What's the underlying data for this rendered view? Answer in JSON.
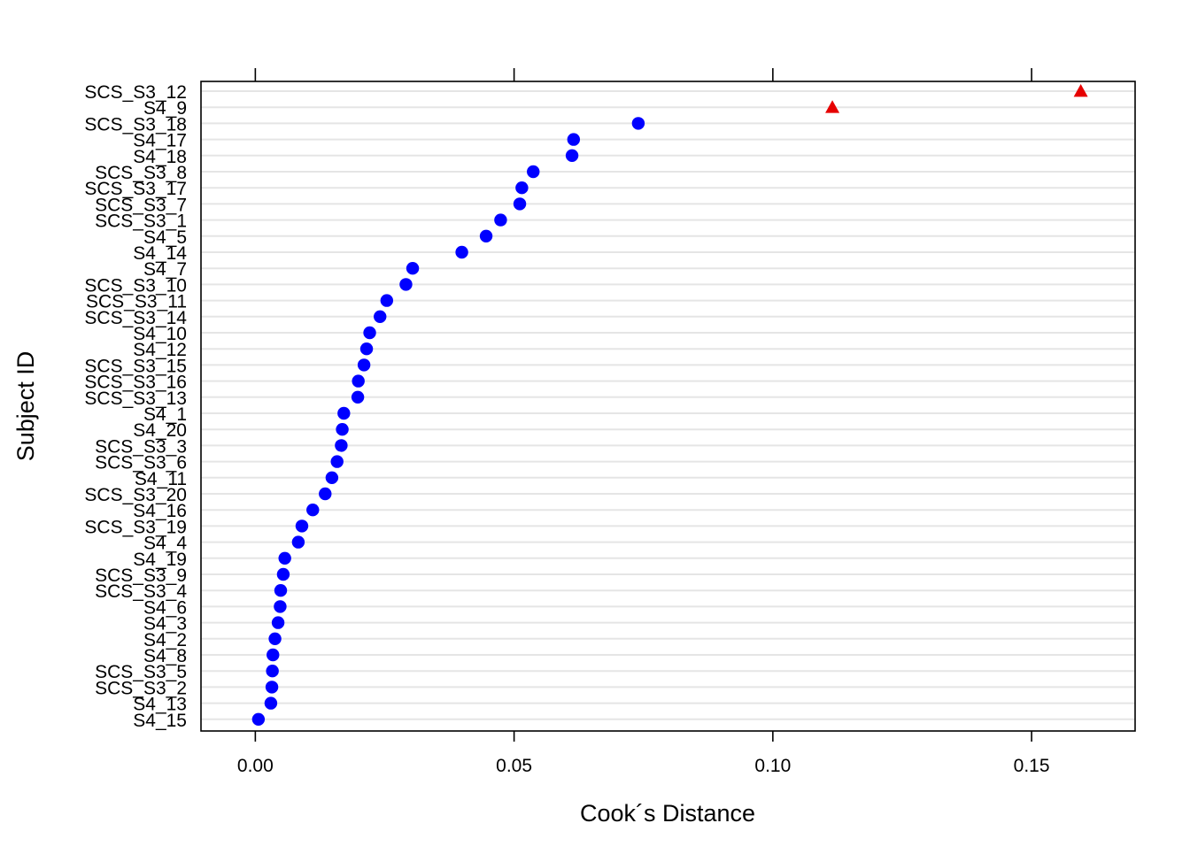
{
  "chart_data": {
    "type": "scatter",
    "title": "",
    "xlabel": "Cook´s Distance",
    "ylabel": "Subject ID",
    "xlim": [
      -0.0105,
      0.17
    ],
    "xticks": [
      0.0,
      0.05,
      0.1,
      0.15
    ],
    "xtick_labels": [
      "0.00",
      "0.05",
      "0.10",
      "0.15"
    ],
    "grid": "horizontal",
    "points": [
      {
        "label": "SCS_S3_12",
        "value": 0.1595,
        "outlier": true
      },
      {
        "label": "S4_9",
        "value": 0.1115,
        "outlier": true
      },
      {
        "label": "SCS_S3_18",
        "value": 0.074,
        "outlier": false
      },
      {
        "label": "S4_17",
        "value": 0.0615,
        "outlier": false
      },
      {
        "label": "S4_18",
        "value": 0.0612,
        "outlier": false
      },
      {
        "label": "SCS_S3_8",
        "value": 0.0537,
        "outlier": false
      },
      {
        "label": "SCS_S3_17",
        "value": 0.0515,
        "outlier": false
      },
      {
        "label": "SCS_S3_7",
        "value": 0.0511,
        "outlier": false
      },
      {
        "label": "SCS_S3_1",
        "value": 0.0474,
        "outlier": false
      },
      {
        "label": "S4_5",
        "value": 0.0446,
        "outlier": false
      },
      {
        "label": "S4_14",
        "value": 0.0399,
        "outlier": false
      },
      {
        "label": "S4_7",
        "value": 0.0304,
        "outlier": false
      },
      {
        "label": "SCS_S3_10",
        "value": 0.0291,
        "outlier": false
      },
      {
        "label": "SCS_S3_11",
        "value": 0.0254,
        "outlier": false
      },
      {
        "label": "SCS_S3_14",
        "value": 0.0241,
        "outlier": false
      },
      {
        "label": "S4_10",
        "value": 0.0221,
        "outlier": false
      },
      {
        "label": "S4_12",
        "value": 0.0215,
        "outlier": false
      },
      {
        "label": "SCS_S3_15",
        "value": 0.021,
        "outlier": false
      },
      {
        "label": "SCS_S3_16",
        "value": 0.0199,
        "outlier": false
      },
      {
        "label": "SCS_S3_13",
        "value": 0.0198,
        "outlier": false
      },
      {
        "label": "S4_1",
        "value": 0.0171,
        "outlier": false
      },
      {
        "label": "S4_20",
        "value": 0.0168,
        "outlier": false
      },
      {
        "label": "SCS_S3_3",
        "value": 0.0166,
        "outlier": false
      },
      {
        "label": "SCS_S3_6",
        "value": 0.0158,
        "outlier": false
      },
      {
        "label": "S4_11",
        "value": 0.0148,
        "outlier": false
      },
      {
        "label": "SCS_S3_20",
        "value": 0.0135,
        "outlier": false
      },
      {
        "label": "S4_16",
        "value": 0.0111,
        "outlier": false
      },
      {
        "label": "SCS_S3_19",
        "value": 0.009,
        "outlier": false
      },
      {
        "label": "S4_4",
        "value": 0.0083,
        "outlier": false
      },
      {
        "label": "S4_19",
        "value": 0.0057,
        "outlier": false
      },
      {
        "label": "SCS_S3_9",
        "value": 0.0054,
        "outlier": false
      },
      {
        "label": "SCS_S3_4",
        "value": 0.0049,
        "outlier": false
      },
      {
        "label": "S4_6",
        "value": 0.0048,
        "outlier": false
      },
      {
        "label": "S4_3",
        "value": 0.0044,
        "outlier": false
      },
      {
        "label": "S4_2",
        "value": 0.0038,
        "outlier": false
      },
      {
        "label": "S4_8",
        "value": 0.0034,
        "outlier": false
      },
      {
        "label": "SCS_S3_5",
        "value": 0.0033,
        "outlier": false
      },
      {
        "label": "SCS_S3_2",
        "value": 0.0032,
        "outlier": false
      },
      {
        "label": "S4_13",
        "value": 0.003,
        "outlier": false
      },
      {
        "label": "S4_15",
        "value": 0.0006,
        "outlier": false
      }
    ],
    "colors": {
      "normal": "#0000ff",
      "outlier": "#e60000",
      "grid": "#e5e5e5"
    },
    "markers": {
      "normal": "circle",
      "outlier": "triangle"
    }
  }
}
